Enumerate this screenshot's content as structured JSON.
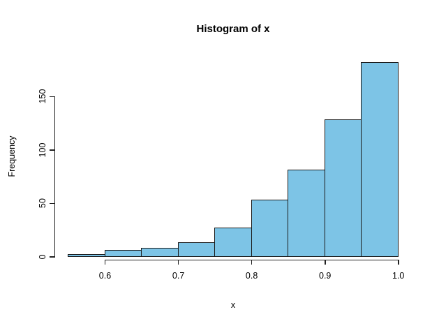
{
  "chart_data": {
    "type": "bar",
    "subtype": "histogram",
    "title": "Histogram of x",
    "xlabel": "x",
    "ylabel": "Frequency",
    "bin_edges": [
      0.55,
      0.6,
      0.65,
      0.7,
      0.75,
      0.8,
      0.85,
      0.9,
      0.95,
      1.0
    ],
    "counts": [
      2,
      6,
      8,
      13,
      27,
      53,
      81,
      128,
      182
    ],
    "x_ticks": [
      0.6,
      0.7,
      0.8,
      0.9,
      1.0
    ],
    "x_tick_labels": [
      "0.6",
      "0.7",
      "0.8",
      "0.9",
      "1.0"
    ],
    "y_ticks": [
      0,
      50,
      100,
      150
    ],
    "y_tick_labels": [
      "0",
      "50",
      "100",
      "150"
    ],
    "xlim": [
      0.55,
      1.0
    ],
    "ylim": [
      0,
      185
    ],
    "grid": false,
    "legend": null,
    "colors": {
      "bar_fill": "#7dc4e6",
      "bar_border": "#1a1a1a",
      "axis": "#222222",
      "text": "#000000",
      "background": "#ffffff"
    }
  }
}
